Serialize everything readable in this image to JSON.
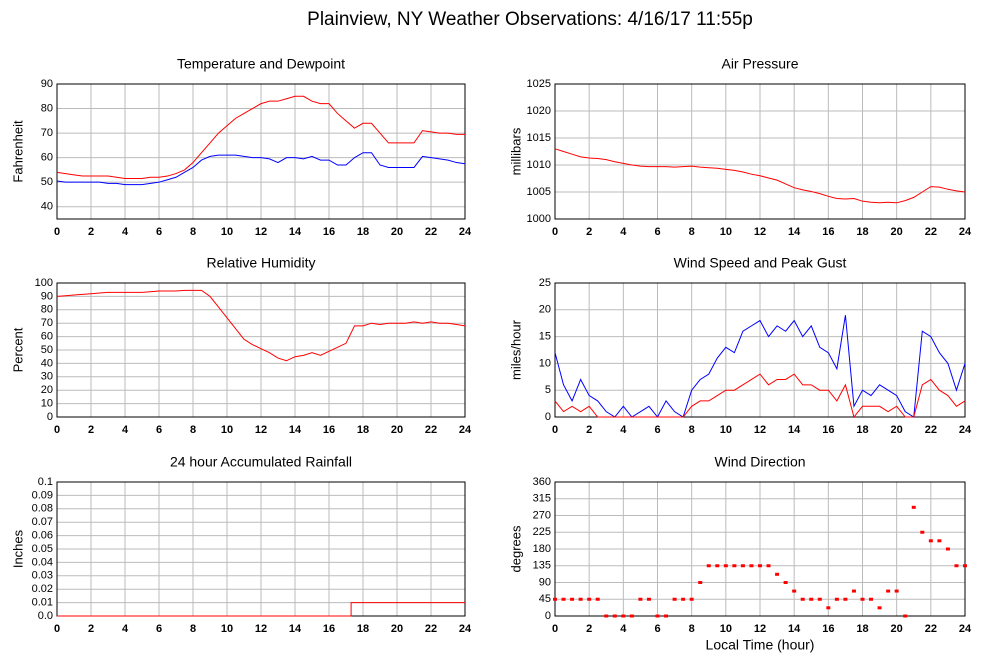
{
  "title": "Plainview, NY Weather Observations: 4/16/17 11:55p",
  "chart_data": [
    {
      "type": "line",
      "title": "Temperature and Dewpoint",
      "ylabel": "Fahrenheit",
      "x": [
        0,
        0.5,
        1,
        1.5,
        2,
        2.5,
        3,
        3.5,
        4,
        4.5,
        5,
        5.5,
        6,
        6.5,
        7,
        7.5,
        8,
        8.5,
        9,
        9.5,
        10,
        10.5,
        11,
        11.5,
        12,
        12.5,
        13,
        13.5,
        14,
        14.5,
        15,
        15.5,
        16,
        16.5,
        17,
        17.5,
        18,
        18.5,
        19,
        19.5,
        20,
        20.5,
        21,
        21.5,
        22,
        22.5,
        23,
        23.5,
        24
      ],
      "xlim": [
        0,
        24
      ],
      "xticks": [
        0,
        2,
        4,
        6,
        8,
        10,
        12,
        14,
        16,
        18,
        20,
        22,
        24
      ],
      "ylim": [
        35,
        90
      ],
      "yticks": [
        40,
        50,
        60,
        70,
        80,
        90
      ],
      "grid": true,
      "series": [
        {
          "color": "#ff0000",
          "values": [
            54,
            53.5,
            53,
            52.5,
            52.5,
            52.5,
            52.5,
            52,
            51.5,
            51.5,
            51.5,
            52,
            52,
            52.5,
            53.5,
            55,
            58,
            62,
            66,
            70,
            73,
            76,
            78,
            80,
            82,
            83,
            83,
            84,
            85,
            85,
            83,
            82,
            82,
            78,
            75,
            72,
            74,
            74,
            70,
            66,
            66,
            66,
            66,
            71,
            70.5,
            70,
            70,
            69.5,
            69.5
          ]
        },
        {
          "color": "#0000ff",
          "values": [
            50.5,
            50,
            50,
            50,
            50,
            50,
            49.5,
            49.5,
            49,
            49,
            49,
            49.5,
            50,
            51,
            52,
            54,
            56,
            59,
            60.5,
            61,
            61,
            61,
            60.5,
            60,
            60,
            59.5,
            58,
            60,
            60,
            59.5,
            60.5,
            59,
            59,
            57,
            57,
            60,
            62,
            62,
            57,
            56,
            56,
            56,
            56,
            60.5,
            60,
            59.5,
            59,
            58,
            57.5
          ]
        }
      ]
    },
    {
      "type": "line",
      "title": "Air Pressure",
      "ylabel": "millibars",
      "x": [
        0,
        0.5,
        1,
        1.5,
        2,
        2.5,
        3,
        3.5,
        4,
        4.5,
        5,
        5.5,
        6,
        6.5,
        7,
        7.5,
        8,
        8.5,
        9,
        9.5,
        10,
        10.5,
        11,
        11.5,
        12,
        12.5,
        13,
        13.5,
        14,
        14.5,
        15,
        15.5,
        16,
        16.5,
        17,
        17.5,
        18,
        18.5,
        19,
        19.5,
        20,
        20.5,
        21,
        21.5,
        22,
        22.5,
        23,
        23.5,
        24
      ],
      "xlim": [
        0,
        24
      ],
      "xticks": [
        0,
        2,
        4,
        6,
        8,
        10,
        12,
        14,
        16,
        18,
        20,
        22,
        24
      ],
      "ylim": [
        1000,
        1025
      ],
      "yticks": [
        1000,
        1005,
        1010,
        1015,
        1020,
        1025
      ],
      "grid": true,
      "series": [
        {
          "color": "#ff0000",
          "values": [
            1013,
            1012.5,
            1012,
            1011.5,
            1011.3,
            1011.2,
            1011,
            1010.6,
            1010.3,
            1010,
            1009.8,
            1009.7,
            1009.7,
            1009.7,
            1009.6,
            1009.7,
            1009.8,
            1009.6,
            1009.5,
            1009.4,
            1009.2,
            1009,
            1008.7,
            1008.3,
            1008,
            1007.6,
            1007.2,
            1006.5,
            1005.8,
            1005.4,
            1005.1,
            1004.7,
            1004.2,
            1003.8,
            1003.7,
            1003.8,
            1003.3,
            1003.1,
            1003,
            1003.1,
            1003,
            1003.4,
            1004,
            1005,
            1006,
            1005.9,
            1005.5,
            1005.2,
            1005
          ]
        }
      ]
    },
    {
      "type": "line",
      "title": "Relative Humidity",
      "ylabel": "Percent",
      "x": [
        0,
        0.5,
        1,
        1.5,
        2,
        2.5,
        3,
        3.5,
        4,
        4.5,
        5,
        5.5,
        6,
        6.5,
        7,
        7.5,
        8,
        8.5,
        9,
        9.5,
        10,
        10.5,
        11,
        11.5,
        12,
        12.5,
        13,
        13.5,
        14,
        14.5,
        15,
        15.5,
        16,
        16.5,
        17,
        17.5,
        18,
        18.5,
        19,
        19.5,
        20,
        20.5,
        21,
        21.5,
        22,
        22.5,
        23,
        23.5,
        24
      ],
      "xlim": [
        0,
        24
      ],
      "xticks": [
        0,
        2,
        4,
        6,
        8,
        10,
        12,
        14,
        16,
        18,
        20,
        22,
        24
      ],
      "ylim": [
        0,
        100
      ],
      "yticks": [
        0,
        10,
        20,
        30,
        40,
        50,
        60,
        70,
        80,
        90,
        100
      ],
      "grid": true,
      "series": [
        {
          "color": "#ff0000",
          "values": [
            90,
            90.5,
            91,
            91.5,
            92,
            92.5,
            93,
            93,
            93,
            93,
            93,
            93.5,
            94,
            94,
            94,
            94.5,
            94.5,
            94.5,
            90,
            82,
            74,
            66,
            58,
            54,
            51,
            48,
            44,
            42,
            45,
            46,
            48,
            46,
            49,
            52,
            55,
            68,
            68,
            70,
            69,
            70,
            70,
            70,
            71,
            70,
            71,
            70,
            70,
            69,
            68
          ]
        }
      ]
    },
    {
      "type": "line",
      "title": "Wind Speed and Peak Gust",
      "ylabel": "miles/hour",
      "x": [
        0,
        0.5,
        1,
        1.5,
        2,
        2.5,
        3,
        3.5,
        4,
        4.5,
        5,
        5.5,
        6,
        6.5,
        7,
        7.5,
        8,
        8.5,
        9,
        9.5,
        10,
        10.5,
        11,
        11.5,
        12,
        12.5,
        13,
        13.5,
        14,
        14.5,
        15,
        15.5,
        16,
        16.5,
        17,
        17.5,
        18,
        18.5,
        19,
        19.5,
        20,
        20.5,
        21,
        21.5,
        22,
        22.5,
        23,
        23.5,
        24
      ],
      "xlim": [
        0,
        24
      ],
      "xticks": [
        0,
        2,
        4,
        6,
        8,
        10,
        12,
        14,
        16,
        18,
        20,
        22,
        24
      ],
      "ylim": [
        0,
        25
      ],
      "yticks": [
        0,
        5,
        10,
        15,
        20,
        25
      ],
      "grid": true,
      "series": [
        {
          "color": "#0000ff",
          "values": [
            12,
            6,
            3,
            7,
            4,
            3,
            1,
            0,
            2,
            0,
            1,
            2,
            0,
            3,
            1,
            0,
            5,
            7,
            8,
            11,
            13,
            12,
            16,
            17,
            18,
            15,
            17,
            16,
            18,
            15,
            17,
            13,
            12,
            9,
            19,
            2,
            5,
            4,
            6,
            5,
            4,
            1,
            0,
            16,
            15,
            12,
            10,
            5,
            10
          ]
        },
        {
          "color": "#ff0000",
          "values": [
            3,
            1,
            2,
            1,
            2,
            0,
            0,
            0,
            0,
            0,
            0,
            0,
            0,
            0,
            0,
            0,
            2,
            3,
            3,
            4,
            5,
            5,
            6,
            7,
            8,
            6,
            7,
            7,
            8,
            6,
            6,
            5,
            5,
            3,
            6,
            0,
            2,
            2,
            2,
            1,
            2,
            0,
            0,
            6,
            7,
            5,
            4,
            2,
            3
          ]
        }
      ]
    },
    {
      "type": "line",
      "title": "24 hour Accumulated Rainfall",
      "ylabel": "Inches",
      "x": [
        0,
        17.3,
        17.3,
        24
      ],
      "xlim": [
        0,
        24
      ],
      "xticks": [
        0,
        2,
        4,
        6,
        8,
        10,
        12,
        14,
        16,
        18,
        20,
        22,
        24
      ],
      "ylim": [
        0,
        0.1
      ],
      "yticks": [
        {
          "value": 0,
          "label": "0.0"
        },
        0.01,
        0.02,
        0.03,
        0.04,
        0.05,
        0.06,
        0.07,
        0.08,
        0.09,
        0.1
      ],
      "grid": true,
      "series": [
        {
          "color": "#ff0000",
          "values": [
            0,
            0,
            0.01,
            0.01
          ]
        }
      ]
    },
    {
      "type": "scatter",
      "title": "Wind Direction",
      "ylabel": "degrees",
      "xlabel": "Local Time (hour)",
      "x": [
        0,
        0.5,
        1,
        1.5,
        2,
        2.5,
        3,
        3.5,
        4,
        4.5,
        5,
        5.5,
        6,
        6.5,
        7,
        7.5,
        8,
        8.5,
        9,
        9.5,
        10,
        10.5,
        11,
        11.5,
        12,
        12.5,
        13,
        13.5,
        14,
        14.5,
        15,
        15.5,
        16,
        16.5,
        17,
        17.5,
        18,
        18.5,
        19,
        19.5,
        20,
        20.5,
        21,
        21.5,
        22,
        22.5,
        23,
        23.5,
        24
      ],
      "xlim": [
        0,
        24
      ],
      "xticks": [
        0,
        2,
        4,
        6,
        8,
        10,
        12,
        14,
        16,
        18,
        20,
        22,
        24
      ],
      "ylim": [
        0,
        360
      ],
      "yticks": [
        0,
        45,
        90,
        135,
        180,
        225,
        270,
        315,
        360
      ],
      "grid": true,
      "series": [
        {
          "color": "#ff0000",
          "values": [
            45,
            45,
            45,
            45,
            45,
            45,
            0,
            0,
            0,
            0,
            45,
            45,
            0,
            0,
            45,
            45,
            45,
            90,
            135,
            135,
            135,
            135,
            135,
            135,
            135,
            135,
            112,
            90,
            67,
            45,
            45,
            45,
            22,
            45,
            45,
            67,
            45,
            45,
            22,
            67,
            67,
            0,
            292,
            225,
            202,
            202,
            180,
            135,
            135
          ]
        }
      ]
    }
  ]
}
